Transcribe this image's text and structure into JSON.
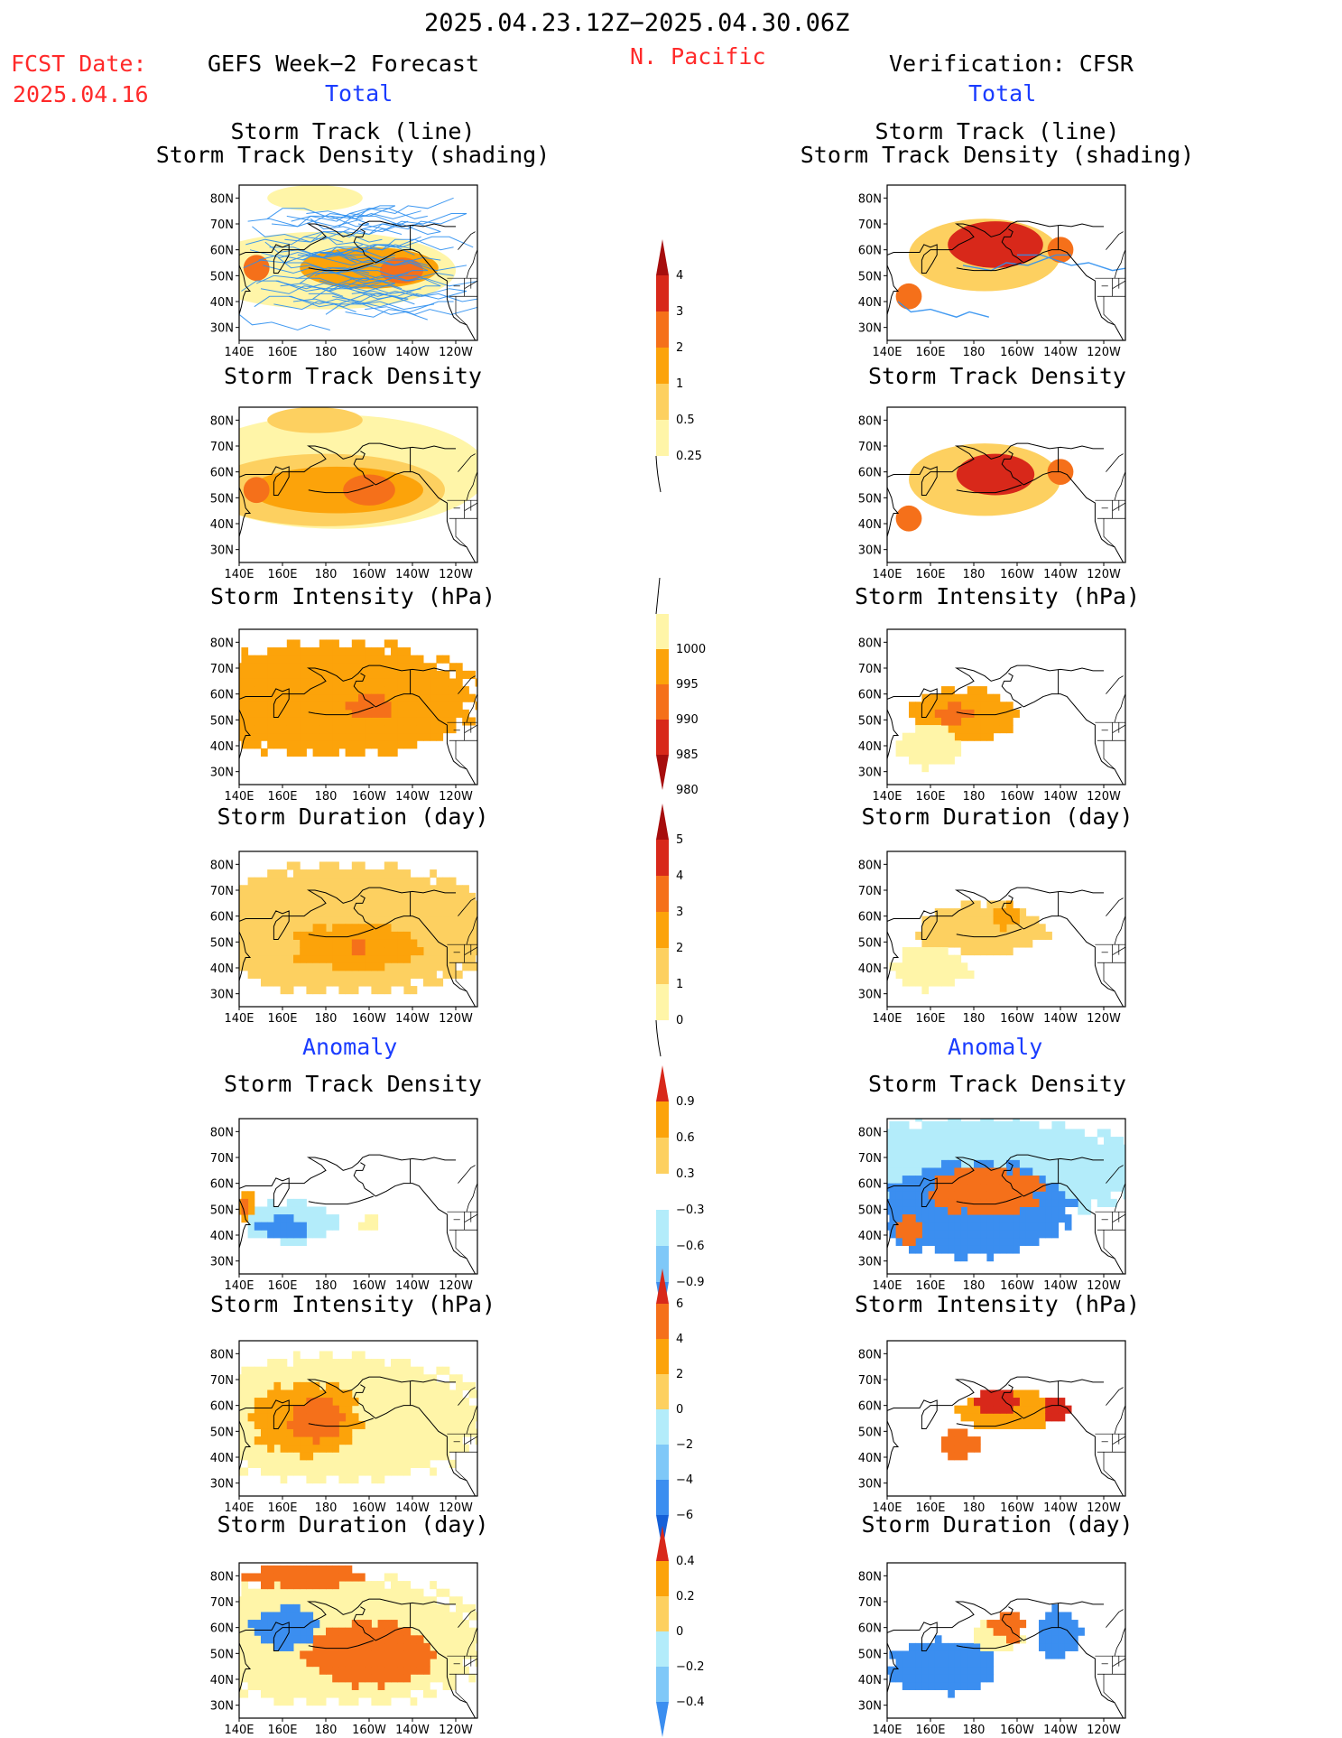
{
  "header": {
    "period": "2025.04.23.12Z−2025.04.30.06Z",
    "fcst_label": "FCST Date:",
    "fcst_date": "2025.04.16",
    "region": "N. Pacific",
    "left_title": "GEFS Week−2 Forecast",
    "right_title": "Verification: CFSR",
    "left_total": "Total",
    "right_total": "Total",
    "left_anomaly": "Anomaly",
    "right_anomaly": "Anomaly"
  },
  "panel_titles": {
    "track1": "Storm Track (line)",
    "track2": "Storm Track Density (shading)",
    "density": "Storm Track Density",
    "intensity": "Storm Intensity (hPa)",
    "duration": "Storm Duration (day)"
  },
  "axes": {
    "lon_ticks": [
      "140E",
      "160E",
      "180",
      "160W",
      "140W",
      "120W"
    ],
    "lat_ticks": [
      "80N",
      "70N",
      "60N",
      "50N",
      "40N",
      "30N"
    ]
  },
  "colors": {
    "pale_yellow": "#fff5a8",
    "light_orange": "#fdd060",
    "orange": "#fca30a",
    "dark_orange": "#f5701a",
    "red": "#d8281a",
    "dark_red": "#a60d0d",
    "light_blue": "#b3ecfa",
    "mid_blue": "#7fc8f8",
    "blue": "#3b8ef0",
    "dark_blue": "#1560d8",
    "track_line": "#2d8ff0"
  },
  "colorbars": [
    {
      "id": "density",
      "labels": [
        "4",
        "3",
        "2",
        "1",
        "0.5",
        "0.25"
      ]
    },
    {
      "id": "intensity",
      "labels": [
        "1000",
        "995",
        "990",
        "985",
        "980"
      ]
    },
    {
      "id": "duration",
      "labels": [
        "5",
        "4",
        "3",
        "2",
        "1",
        "0"
      ]
    },
    {
      "id": "density_anom",
      "labels": [
        "0.9",
        "0.6",
        "0.3",
        "−0.3",
        "−0.6",
        "−0.9"
      ]
    },
    {
      "id": "intensity_anom",
      "labels": [
        "6",
        "4",
        "2",
        "0",
        "−2",
        "−4",
        "−6"
      ]
    },
    {
      "id": "duration_anom",
      "labels": [
        "0.4",
        "0.2",
        "0",
        "−0.2",
        "−0.4"
      ]
    }
  ],
  "chart_data": [
    {
      "type": "heatmap",
      "panel": "GEFS Storm Track (line) / Storm Track Density (shading)",
      "xlabel": "",
      "ylabel": "",
      "xlim": [
        "140E",
        "110W"
      ],
      "ylim": [
        "25N",
        "85N"
      ],
      "blobs": [
        {
          "lon": 200,
          "lat": 53,
          "rx": 32,
          "ry": 8,
          "level": 3
        },
        {
          "lon": 148,
          "lat": 53,
          "rx": 6,
          "ry": 5,
          "level": 4
        },
        {
          "lon": 215,
          "lat": 52,
          "rx": 10,
          "ry": 5,
          "level": 4
        },
        {
          "lon": 180,
          "lat": 52,
          "rx": 60,
          "ry": 15,
          "level": 1
        },
        {
          "lon": 175,
          "lat": 80,
          "rx": 22,
          "ry": 5,
          "level": 1
        }
      ],
      "tracks": true
    },
    {
      "type": "heatmap",
      "panel": "CFSR Storm Track (line) / Storm Track Density (shading)",
      "xlabel": "",
      "ylabel": "",
      "xlim": [
        "140E",
        "110W"
      ],
      "ylim": [
        "25N",
        "85N"
      ],
      "blobs": [
        {
          "lon": 190,
          "lat": 62,
          "rx": 22,
          "ry": 9,
          "level": 5
        },
        {
          "lon": 150,
          "lat": 42,
          "rx": 6,
          "ry": 5,
          "level": 4
        },
        {
          "lon": 220,
          "lat": 60,
          "rx": 6,
          "ry": 5,
          "level": 4
        },
        {
          "lon": 185,
          "lat": 58,
          "rx": 35,
          "ry": 14,
          "level": 2
        }
      ],
      "tracks": true
    },
    {
      "type": "heatmap",
      "panel": "GEFS Storm Track Density",
      "blobs": [
        {
          "lon": 200,
          "lat": 53,
          "rx": 12,
          "ry": 6,
          "level": 4
        },
        {
          "lon": 148,
          "lat": 53,
          "rx": 6,
          "ry": 5,
          "level": 4
        },
        {
          "lon": 185,
          "lat": 53,
          "rx": 40,
          "ry": 9,
          "level": 3
        },
        {
          "lon": 180,
          "lat": 53,
          "rx": 55,
          "ry": 14,
          "level": 2
        },
        {
          "lon": 175,
          "lat": 80,
          "rx": 22,
          "ry": 5,
          "level": 2
        },
        {
          "lon": 185,
          "lat": 60,
          "rx": 70,
          "ry": 22,
          "level": 1
        }
      ]
    },
    {
      "type": "heatmap",
      "panel": "CFSR Storm Track Density",
      "blobs": [
        {
          "lon": 190,
          "lat": 59,
          "rx": 18,
          "ry": 8,
          "level": 5
        },
        {
          "lon": 150,
          "lat": 42,
          "rx": 6,
          "ry": 5,
          "level": 4
        },
        {
          "lon": 220,
          "lat": 60,
          "rx": 6,
          "ry": 5,
          "level": 4
        },
        {
          "lon": 185,
          "lat": 57,
          "rx": 35,
          "ry": 14,
          "level": 2
        }
      ]
    },
    {
      "type": "heatmap",
      "panel": "GEFS Storm Intensity (hPa)",
      "blobs": [
        {
          "lon": 185,
          "lat": 58,
          "rx": 65,
          "ry": 22,
          "level": 2
        },
        {
          "lon": 200,
          "lat": 55,
          "rx": 10,
          "ry": 5,
          "level": 3
        }
      ]
    },
    {
      "type": "heatmap",
      "panel": "CFSR Storm Intensity (hPa)",
      "blobs": [
        {
          "lon": 175,
          "lat": 52,
          "rx": 25,
          "ry": 10,
          "level": 2
        },
        {
          "lon": 170,
          "lat": 52,
          "rx": 8,
          "ry": 4,
          "level": 3
        },
        {
          "lon": 160,
          "lat": 40,
          "rx": 15,
          "ry": 8,
          "level": 1
        }
      ]
    },
    {
      "type": "heatmap",
      "panel": "GEFS Storm Duration (day)",
      "blobs": [
        {
          "lon": 190,
          "lat": 55,
          "rx": 70,
          "ry": 25,
          "level": 2
        },
        {
          "lon": 195,
          "lat": 48,
          "rx": 30,
          "ry": 9,
          "level": 3
        },
        {
          "lon": 195,
          "lat": 47,
          "rx": 4,
          "ry": 3,
          "level": 4
        }
      ]
    },
    {
      "type": "heatmap",
      "panel": "CFSR Storm Duration (day)",
      "blobs": [
        {
          "lon": 185,
          "lat": 55,
          "rx": 30,
          "ry": 10,
          "level": 2
        },
        {
          "lon": 195,
          "lat": 60,
          "rx": 8,
          "ry": 5,
          "level": 3
        },
        {
          "lon": 160,
          "lat": 40,
          "rx": 18,
          "ry": 8,
          "level": 1
        }
      ]
    },
    {
      "type": "heatmap",
      "panel": "GEFS Storm Track Density Anomaly",
      "blobs": [
        {
          "lon": 160,
          "lat": 43,
          "rx": 12,
          "ry": 4,
          "level": -3
        },
        {
          "lon": 165,
          "lat": 45,
          "rx": 22,
          "ry": 8,
          "level": -1
        },
        {
          "lon": 143,
          "lat": 52,
          "rx": 4,
          "ry": 6,
          "level": 2
        },
        {
          "lon": 143,
          "lat": 52,
          "rx": 2,
          "ry": 3,
          "level": 3
        },
        {
          "lon": 200,
          "lat": 44,
          "rx": 4,
          "ry": 3,
          "level": 1
        }
      ]
    },
    {
      "type": "heatmap",
      "panel": "CFSR Storm Track Density Anomaly",
      "blobs": [
        {
          "lon": 185,
          "lat": 57,
          "rx": 25,
          "ry": 9,
          "level": 3
        },
        {
          "lon": 180,
          "lat": 50,
          "rx": 45,
          "ry": 18,
          "level": -3
        },
        {
          "lon": 180,
          "lat": 65,
          "rx": 80,
          "ry": 20,
          "level": -1
        },
        {
          "lon": 150,
          "lat": 42,
          "rx": 6,
          "ry": 6,
          "level": 3
        }
      ]
    },
    {
      "type": "heatmap",
      "panel": "GEFS Storm Intensity Anomaly (hPa)",
      "blobs": [
        {
          "lon": 185,
          "lat": 55,
          "rx": 70,
          "ry": 24,
          "level": 1
        },
        {
          "lon": 175,
          "lat": 55,
          "rx": 12,
          "ry": 8,
          "level": 3
        },
        {
          "lon": 170,
          "lat": 55,
          "rx": 25,
          "ry": 14,
          "level": 2
        }
      ]
    },
    {
      "type": "heatmap",
      "panel": "CFSR Storm Intensity Anomaly (hPa)",
      "blobs": [
        {
          "lon": 190,
          "lat": 62,
          "rx": 10,
          "ry": 5,
          "level": 4
        },
        {
          "lon": 218,
          "lat": 58,
          "rx": 6,
          "ry": 5,
          "level": 4
        },
        {
          "lon": 195,
          "lat": 58,
          "rx": 22,
          "ry": 8,
          "level": 2
        },
        {
          "lon": 175,
          "lat": 45,
          "rx": 10,
          "ry": 5,
          "level": 3
        }
      ]
    },
    {
      "type": "heatmap",
      "panel": "GEFS Storm Duration Anomaly (day)",
      "blobs": [
        {
          "lon": 170,
          "lat": 80,
          "rx": 30,
          "ry": 4,
          "level": 3
        },
        {
          "lon": 200,
          "lat": 50,
          "rx": 30,
          "ry": 12,
          "level": 3
        },
        {
          "lon": 160,
          "lat": 60,
          "rx": 15,
          "ry": 8,
          "level": -3
        },
        {
          "lon": 185,
          "lat": 55,
          "rx": 70,
          "ry": 25,
          "level": 1
        }
      ]
    },
    {
      "type": "heatmap",
      "panel": "CFSR Storm Duration Anomaly (day)",
      "blobs": [
        {
          "lon": 195,
          "lat": 60,
          "rx": 8,
          "ry": 5,
          "level": 3
        },
        {
          "lon": 220,
          "lat": 58,
          "rx": 10,
          "ry": 10,
          "level": -3
        },
        {
          "lon": 165,
          "lat": 45,
          "rx": 25,
          "ry": 10,
          "level": -3
        },
        {
          "lon": 190,
          "lat": 57,
          "rx": 12,
          "ry": 6,
          "level": 1
        }
      ]
    }
  ]
}
